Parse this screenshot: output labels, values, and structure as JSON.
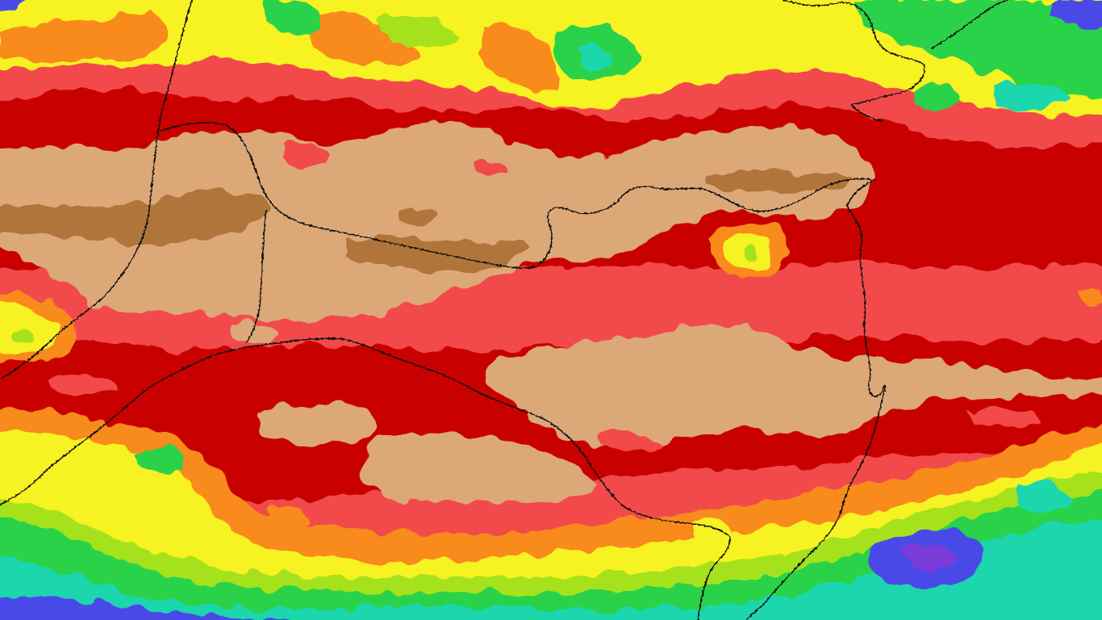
{
  "map": {
    "kind": "gridded precipitation anomaly contour map",
    "labels": [],
    "colors": {
      "dark_brown": "#b0753a",
      "tan": "#dca878",
      "dark_red": "#c80000",
      "red": "#f24a4a",
      "orange": "#f98a1c",
      "yellow": "#f7f221",
      "light_green": "#a6e21e",
      "green": "#2ad24a",
      "teal": "#1ed6ae",
      "blue": "#4a4ae8",
      "violet": "#7a3ad8",
      "border_line": "#111111"
    }
  }
}
